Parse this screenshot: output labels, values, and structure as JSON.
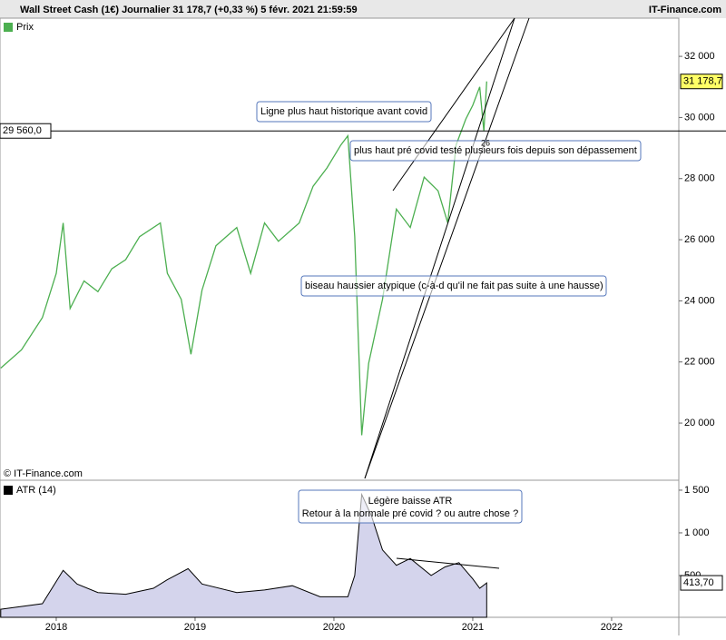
{
  "header": {
    "title": "Wall Street Cash (1€) Journalier 31 178,7 (+0,33 %) 5 févr. 2021 21:59:59",
    "brand": "IT-Finance.com",
    "copyright": "© IT-Finance.com"
  },
  "chart_data": [
    {
      "type": "line",
      "x": [
        2017.6,
        2017.75,
        2017.9,
        2018.0,
        2018.05,
        2018.1,
        2018.2,
        2018.3,
        2018.4,
        2018.5,
        2018.6,
        2018.75,
        2018.8,
        2018.9,
        2018.97,
        2019.05,
        2019.15,
        2019.3,
        2019.4,
        2019.5,
        2019.6,
        2019.75,
        2019.85,
        2019.95,
        2020.05,
        2020.1,
        2020.15,
        2020.2,
        2020.25,
        2020.35,
        2020.45,
        2020.55,
        2020.65,
        2020.75,
        2020.82,
        2020.88,
        2020.95,
        2021.0,
        2021.05,
        2021.08,
        2021.1
      ],
      "series": [
        {
          "name": "Prix",
          "color": "#4caf50",
          "values": [
            21800,
            22400,
            23450,
            24900,
            26550,
            23750,
            24650,
            24300,
            25050,
            25350,
            26100,
            26550,
            24900,
            24050,
            22250,
            24350,
            25800,
            26400,
            24900,
            26550,
            25950,
            26550,
            27750,
            28350,
            29100,
            29400,
            26100,
            19600,
            21950,
            24050,
            27000,
            26400,
            28050,
            27600,
            26550,
            29100,
            29950,
            30400,
            31000,
            29550,
            31180
          ]
        }
      ],
      "xlim": [
        2017.595,
        2022.484
      ],
      "ylim": [
        18160,
        33250
      ],
      "yticks": [
        {
          "value": 20000,
          "label": "20 000"
        },
        {
          "value": 22000,
          "label": "22 000"
        },
        {
          "value": 24000,
          "label": "24 000"
        },
        {
          "value": 26000,
          "label": "26 000"
        },
        {
          "value": 28000,
          "label": "28 000"
        },
        {
          "value": 30000,
          "label": "30 000"
        },
        {
          "value": 32000,
          "label": "32 000"
        }
      ],
      "level": {
        "value": 29560,
        "label": "29 560,0"
      },
      "last": {
        "value": 31178.7,
        "label": "31 178,7"
      },
      "annotations": [
        "Ligne plus haut historique avant covid",
        "plus haut pré covid testé plusieurs fois depuis son dépassement",
        "biseau haussier atypique (c-à-d qu'il ne fait pas suite à une hausse)",
        "26"
      ]
    },
    {
      "type": "area",
      "x": [
        2017.6,
        2017.9,
        2018.05,
        2018.15,
        2018.3,
        2018.5,
        2018.7,
        2018.8,
        2018.95,
        2019.05,
        2019.3,
        2019.5,
        2019.7,
        2019.9,
        2020.1,
        2020.15,
        2020.2,
        2020.27,
        2020.35,
        2020.45,
        2020.55,
        2020.7,
        2020.8,
        2020.9,
        2021.0,
        2021.05,
        2021.1
      ],
      "series": [
        {
          "name": "ATR (14)",
          "color": "#000000",
          "values": [
            105,
            170,
            560,
            400,
            300,
            280,
            350,
            450,
            580,
            400,
            300,
            330,
            380,
            250,
            250,
            500,
            1450,
            1200,
            800,
            620,
            700,
            500,
            600,
            650,
            460,
            350,
            413.7
          ]
        }
      ],
      "xlim": [
        2017.595,
        2022.484
      ],
      "ylim": [
        10,
        1606
      ],
      "yticks": [
        {
          "value": 500,
          "label": "500"
        },
        {
          "value": 1000,
          "label": "1 000"
        },
        {
          "value": 1500,
          "label": "1 500"
        }
      ],
      "xticks": [
        2018,
        2019,
        2020,
        2021,
        2022
      ],
      "last": {
        "value": 413.7,
        "label": "413,70"
      },
      "annotations": [
        "Légère baisse ATR",
        "Retour à la normale pré covid ? ou autre chose ?"
      ]
    }
  ]
}
